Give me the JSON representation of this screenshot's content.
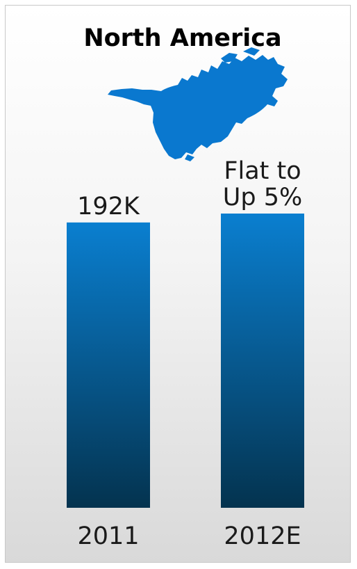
{
  "chart_data": {
    "type": "bar",
    "title": "North America",
    "xlabel": "",
    "ylabel": "",
    "categories": [
      "2011",
      "2012E"
    ],
    "values": [
      192,
      198
    ],
    "data_labels": [
      [
        "192K"
      ],
      [
        "Flat to",
        "Up 5%"
      ]
    ],
    "unit": "K",
    "ylim": [
      0,
      220
    ],
    "grid": false,
    "legend": "none",
    "colors": {
      "bar_top": "#0a7fd0",
      "bar_bottom": "#04334f",
      "map": "#0a78cf"
    },
    "icon": "north-america-map-icon"
  }
}
